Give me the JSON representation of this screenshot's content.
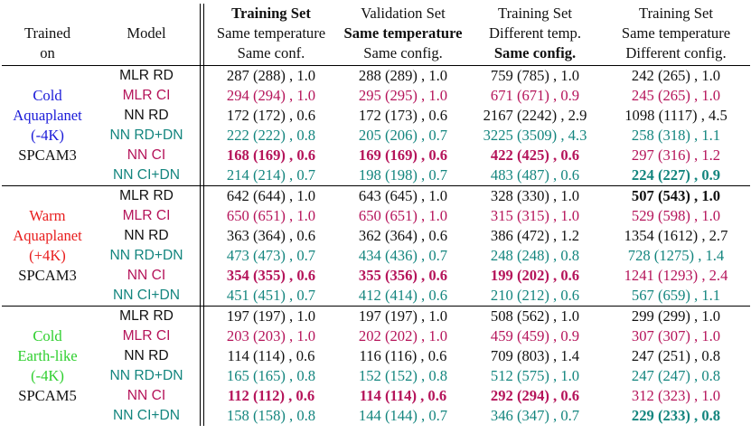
{
  "colors": {
    "black": "#111111",
    "crimson": "#b5145a",
    "teal": "#13857e",
    "cold_aquaplanet": "#1a1ad8",
    "warm_aquaplanet": "#e81c1c",
    "cold_earthlike": "#2ecf2e"
  },
  "header": {
    "trained_on": [
      "Trained",
      "on"
    ],
    "model": "Model",
    "columns": [
      {
        "line1": "Training Set",
        "line2": "Same temperature",
        "line3": "Same conf.",
        "bold_line": 0
      },
      {
        "line1": "Validation Set",
        "line2": "Same temperature",
        "line3": "Same config.",
        "bold_line": 1
      },
      {
        "line1": "Training Set",
        "line2": "Different temp.",
        "line3": "Same config.",
        "bold_line": 2
      },
      {
        "line1": "Training Set",
        "line2": "Same temperature",
        "line3": "Different config.",
        "bold_line": 3
      }
    ]
  },
  "groups": [
    {
      "label": [
        "Cold",
        "Aquaplanet",
        "(-4K)",
        "SPCAM3"
      ],
      "label_color": "blue",
      "rows": [
        {
          "model": "MLR RD",
          "color": "k",
          "cells": [
            "287 (288) , 1.0",
            "288 (289) , 1.0",
            "759 (785) , 1.0",
            "242 (265) , 1.0"
          ],
          "bold": []
        },
        {
          "model": "MLR CI",
          "color": "r",
          "cells": [
            "294 (294) , 1.0",
            "295 (295) , 1.0",
            "671 (671) , 0.9",
            "245 (265) , 1.0"
          ],
          "bold": []
        },
        {
          "model": "NN RD",
          "color": "k",
          "cells": [
            "172 (172) , 0.6",
            "172 (173) , 0.6",
            "2167 (2242) , 2.9",
            "1098 (1117) , 4.5"
          ],
          "bold": []
        },
        {
          "model": "NN RD+DN",
          "color": "t",
          "cells": [
            "222 (222) , 0.8",
            "205 (206) , 0.7",
            "3225 (3509) , 4.3",
            "258 (318) , 1.1"
          ],
          "bold": []
        },
        {
          "model": "NN CI",
          "color": "r",
          "cells": [
            "168 (169) , 0.6",
            "169 (169) , 0.6",
            "422 (425) , 0.6",
            "297 (316) , 1.2"
          ],
          "bold": [
            0,
            1,
            2
          ]
        },
        {
          "model": "NN CI+DN",
          "color": "t",
          "cells": [
            "214 (214) , 0.7",
            "198 (198) , 0.7",
            "483 (487) , 0.6",
            "224 (227) , 0.9"
          ],
          "bold": [
            3
          ]
        }
      ]
    },
    {
      "label": [
        "Warm",
        "Aquaplanet",
        "(+4K)",
        "SPCAM3"
      ],
      "label_color": "red",
      "rows": [
        {
          "model": "MLR RD",
          "color": "k",
          "cells": [
            "642 (644) , 1.0",
            "643 (645) , 1.0",
            "328 (330) , 1.0",
            "507 (543) , 1.0"
          ],
          "bold": [
            3
          ]
        },
        {
          "model": "MLR CI",
          "color": "r",
          "cells": [
            "650 (651) , 1.0",
            "650 (651) , 1.0",
            "315 (315) , 1.0",
            "529 (598) , 1.0"
          ],
          "bold": []
        },
        {
          "model": "NN RD",
          "color": "k",
          "cells": [
            "363 (364) , 0.6",
            "362 (364) , 0.6",
            "386 (472) , 1.2",
            "1354 (1612) , 2.7"
          ],
          "bold": []
        },
        {
          "model": "NN RD+DN",
          "color": "t",
          "cells": [
            "473 (473) , 0.7",
            "434 (436) , 0.7",
            "248 (248) , 0.8",
            "728 (1275) , 1.4"
          ],
          "bold": []
        },
        {
          "model": "NN CI",
          "color": "r",
          "cells": [
            "354 (355) , 0.6",
            "355 (356) , 0.6",
            "199 (202) , 0.6",
            "1241 (1293) , 2.4"
          ],
          "bold": [
            0,
            1,
            2
          ]
        },
        {
          "model": "NN CI+DN",
          "color": "t",
          "cells": [
            "451 (451) , 0.7",
            "412 (414) , 0.6",
            "210 (212) , 0.6",
            "567 (659) , 1.1"
          ],
          "bold": []
        }
      ]
    },
    {
      "label": [
        "Cold",
        "Earth-like",
        "(-4K)",
        "SPCAM5"
      ],
      "label_color": "green",
      "rows": [
        {
          "model": "MLR RD",
          "color": "k",
          "cells": [
            "197 (197) , 1.0",
            "197 (197) , 1.0",
            "508 (562) , 1.0",
            "299 (299) , 1.0"
          ],
          "bold": []
        },
        {
          "model": "MLR CI",
          "color": "r",
          "cells": [
            "203 (203) , 1.0",
            "202 (202) , 1.0",
            "459 (459) , 0.9",
            "307 (307) , 1.0"
          ],
          "bold": []
        },
        {
          "model": "NN RD",
          "color": "k",
          "cells": [
            "114 (114) , 0.6",
            "116 (116) , 0.6",
            "709 (803) , 1.4",
            "247 (251) , 0.8"
          ],
          "bold": []
        },
        {
          "model": "NN RD+DN",
          "color": "t",
          "cells": [
            "165 (165) , 0.8",
            "152 (152) , 0.8",
            "512 (575) , 1.0",
            "247 (247) , 0.8"
          ],
          "bold": []
        },
        {
          "model": "NN CI",
          "color": "r",
          "cells": [
            "112 (112) , 0.6",
            "114 (114) , 0.6",
            "292 (294) , 0.6",
            "312 (323) , 1.0"
          ],
          "bold": [
            0,
            1,
            2
          ]
        },
        {
          "model": "NN CI+DN",
          "color": "t",
          "cells": [
            "158 (158) , 0.8",
            "144 (144) , 0.7",
            "346 (347) , 0.7",
            "229 (233) , 0.8"
          ],
          "bold": [
            3
          ]
        }
      ]
    }
  ]
}
